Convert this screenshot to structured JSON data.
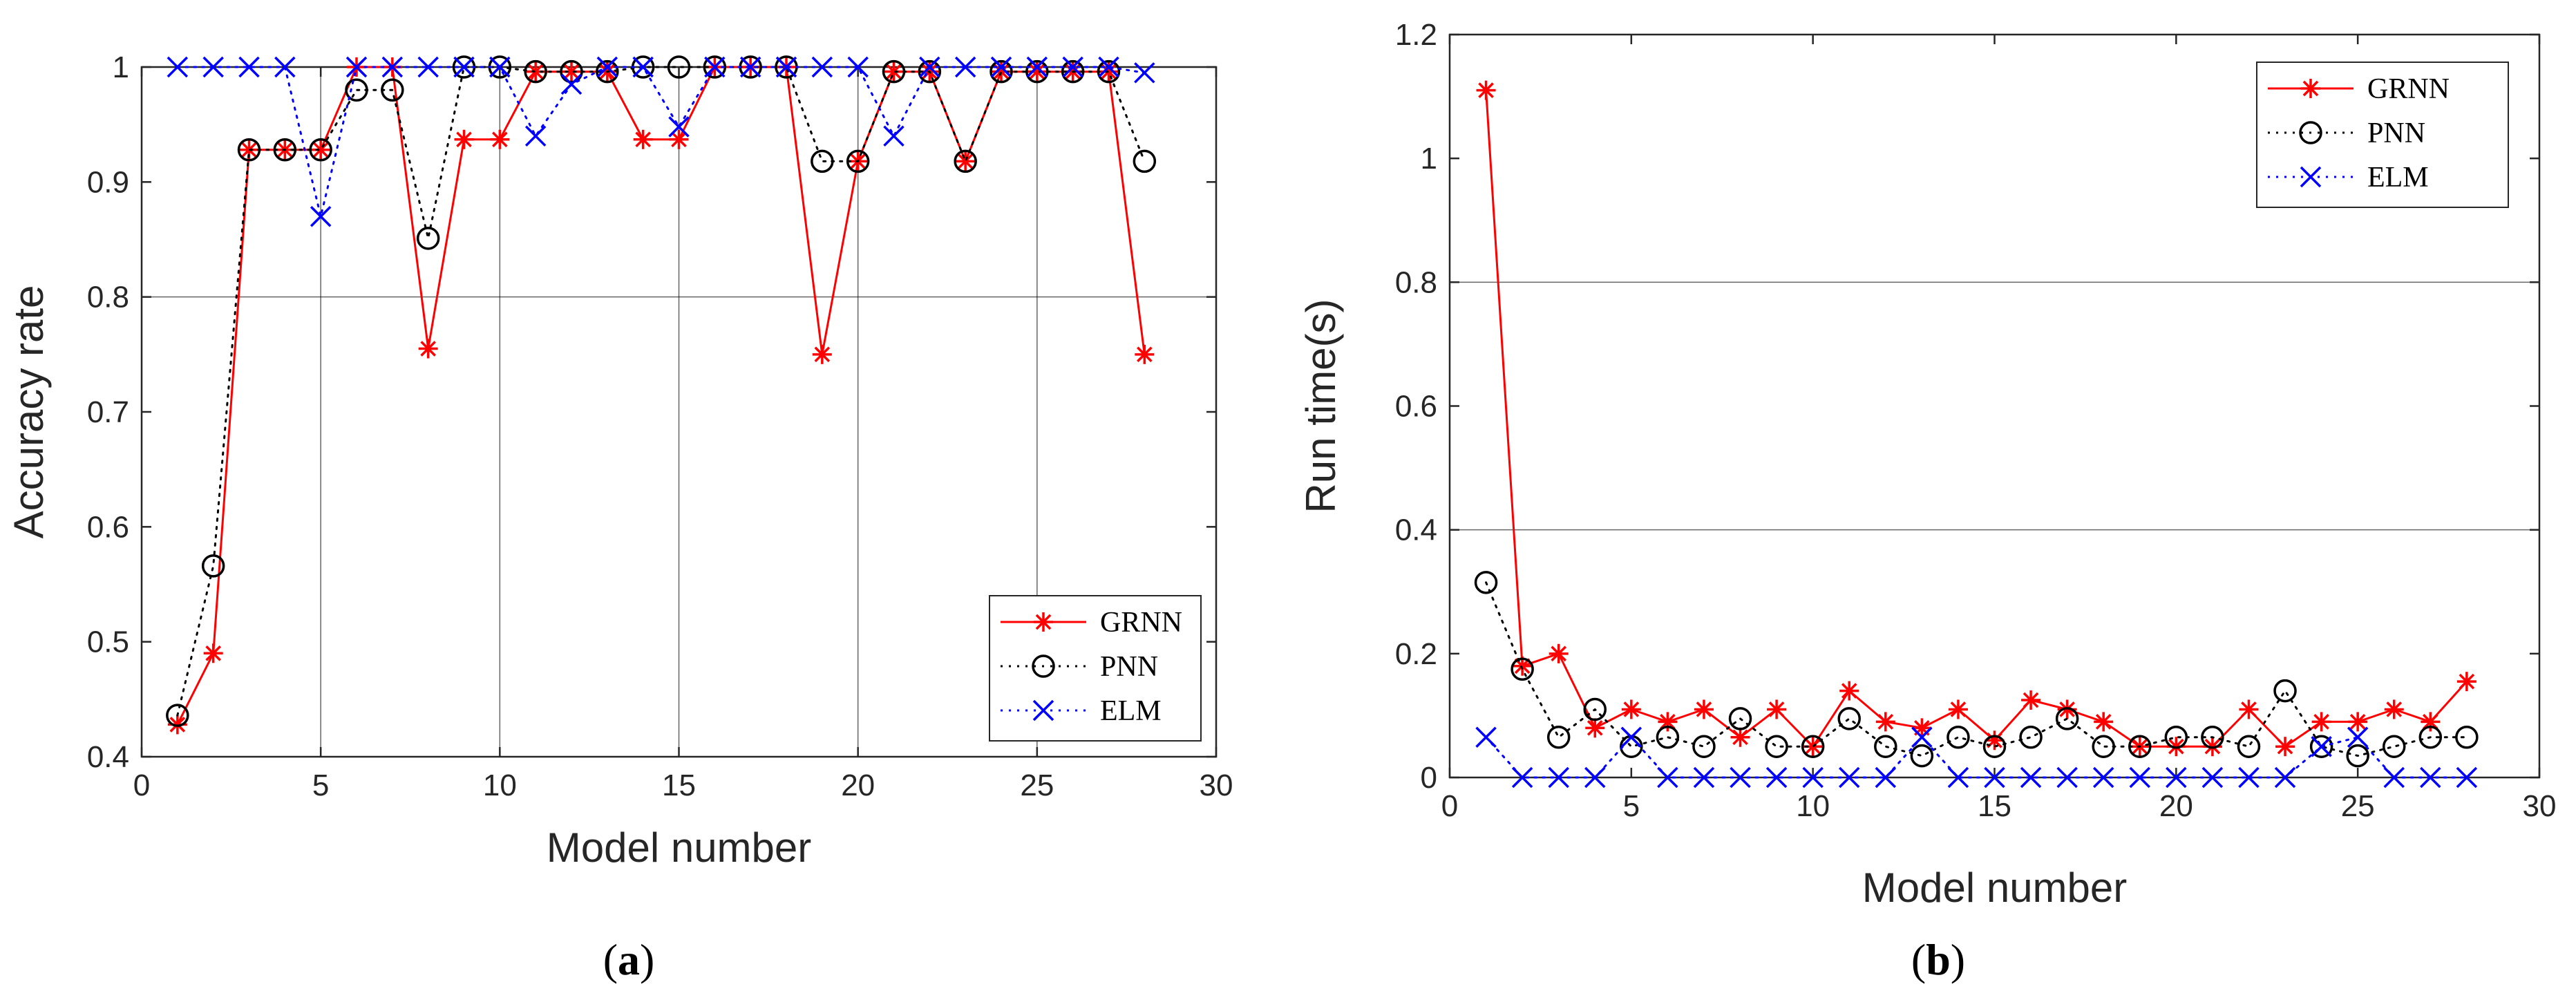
{
  "colors": {
    "GRNN": "#ff0000",
    "PNN": "#000000",
    "ELM": "#0000ff",
    "axis": "#262626",
    "grid": "#000000"
  },
  "chart_data": [
    {
      "id": "a",
      "type": "line",
      "caption": "a",
      "xlabel": "Model number",
      "ylabel": "Accuracy rate",
      "xlim": [
        0,
        30
      ],
      "ylim": [
        0.4,
        1.0
      ],
      "xticks": [
        0,
        5,
        10,
        15,
        20,
        25,
        30
      ],
      "yticks": [
        0.4,
        0.5,
        0.6,
        0.7,
        0.8,
        0.9,
        1.0
      ],
      "xtick_labels": [
        "0",
        "5",
        "10",
        "15",
        "20",
        "25",
        "30"
      ],
      "ytick_labels": [
        "0.4",
        "0.5",
        "0.6",
        "0.7",
        "0.8",
        "0.9",
        "1"
      ],
      "xgrid": [
        5,
        10,
        15,
        20,
        25
      ],
      "ygrid": [
        0.8
      ],
      "legend_position": "bottom-right",
      "x": [
        1,
        2,
        3,
        4,
        5,
        6,
        7,
        8,
        9,
        10,
        11,
        12,
        13,
        14,
        15,
        16,
        17,
        18,
        19,
        20,
        21,
        22,
        23,
        24,
        25,
        26,
        27,
        28
      ],
      "series": [
        {
          "name": "GRNN",
          "style": "solid",
          "marker": "asterisk",
          "values": [
            0.428,
            0.49,
            0.928,
            0.928,
            0.928,
            1.0,
            1.0,
            0.755,
            0.937,
            0.937,
            0.996,
            0.996,
            0.996,
            0.937,
            0.937,
            1.0,
            1.0,
            1.0,
            0.75,
            0.918,
            0.996,
            0.996,
            0.918,
            0.996,
            0.996,
            0.996,
            0.996,
            0.75
          ]
        },
        {
          "name": "PNN",
          "style": "dotted",
          "marker": "circle",
          "values": [
            0.436,
            0.566,
            0.928,
            0.928,
            0.928,
            0.98,
            0.98,
            0.851,
            1.0,
            1.0,
            0.996,
            0.996,
            0.996,
            1.0,
            1.0,
            1.0,
            1.0,
            1.0,
            0.918,
            0.918,
            0.996,
            0.996,
            0.918,
            0.996,
            0.996,
            0.996,
            0.996,
            0.918
          ]
        },
        {
          "name": "ELM",
          "style": "dotted",
          "marker": "x",
          "values": [
            1.0,
            1.0,
            1.0,
            1.0,
            0.87,
            1.0,
            1.0,
            1.0,
            1.0,
            1.0,
            0.94,
            0.985,
            1.0,
            1.0,
            0.948,
            1.0,
            1.0,
            1.0,
            1.0,
            1.0,
            0.94,
            1.0,
            1.0,
            1.0,
            1.0,
            1.0,
            1.0,
            0.995
          ]
        }
      ]
    },
    {
      "id": "b",
      "type": "line",
      "caption": "b",
      "xlabel": "Model number",
      "ylabel": "Run time(s)",
      "xlim": [
        0,
        30
      ],
      "ylim": [
        0,
        1.2
      ],
      "xticks": [
        0,
        5,
        10,
        15,
        20,
        25,
        30
      ],
      "yticks": [
        0,
        0.2,
        0.4,
        0.6,
        0.8,
        1.0,
        1.2
      ],
      "xtick_labels": [
        "0",
        "5",
        "10",
        "15",
        "20",
        "25",
        "30"
      ],
      "ytick_labels": [
        "0",
        "0.2",
        "0.4",
        "0.6",
        "0.8",
        "1",
        "1.2"
      ],
      "xgrid": [],
      "ygrid": [
        0.4,
        0.8
      ],
      "legend_position": "top-right",
      "x": [
        1,
        2,
        3,
        4,
        5,
        6,
        7,
        8,
        9,
        10,
        11,
        12,
        13,
        14,
        15,
        16,
        17,
        18,
        19,
        20,
        21,
        22,
        23,
        24,
        25,
        26,
        27,
        28
      ],
      "series": [
        {
          "name": "GRNN",
          "style": "solid",
          "marker": "asterisk",
          "values": [
            1.11,
            0.18,
            0.2,
            0.08,
            0.11,
            0.09,
            0.11,
            0.065,
            0.11,
            0.05,
            0.14,
            0.09,
            0.08,
            0.11,
            0.06,
            0.125,
            0.11,
            0.09,
            0.05,
            0.05,
            0.05,
            0.11,
            0.05,
            0.09,
            0.09,
            0.11,
            0.09,
            0.155
          ]
        },
        {
          "name": "PNN",
          "style": "dotted",
          "marker": "circle",
          "values": [
            0.315,
            0.175,
            0.065,
            0.11,
            0.05,
            0.065,
            0.05,
            0.095,
            0.05,
            0.05,
            0.095,
            0.05,
            0.035,
            0.065,
            0.05,
            0.065,
            0.095,
            0.05,
            0.05,
            0.065,
            0.065,
            0.05,
            0.14,
            0.05,
            0.035,
            0.05,
            0.065,
            0.065
          ]
        },
        {
          "name": "ELM",
          "style": "dotted",
          "marker": "x",
          "values": [
            0.065,
            0.0,
            0.0,
            0.0,
            0.065,
            0.0,
            0.0,
            0.0,
            0.0,
            0.0,
            0.0,
            0.0,
            0.065,
            0.0,
            0.0,
            0.0,
            0.0,
            0.0,
            0.0,
            0.0,
            0.0,
            0.0,
            0.0,
            0.05,
            0.065,
            0.0,
            0.0,
            0.0
          ]
        }
      ]
    }
  ]
}
